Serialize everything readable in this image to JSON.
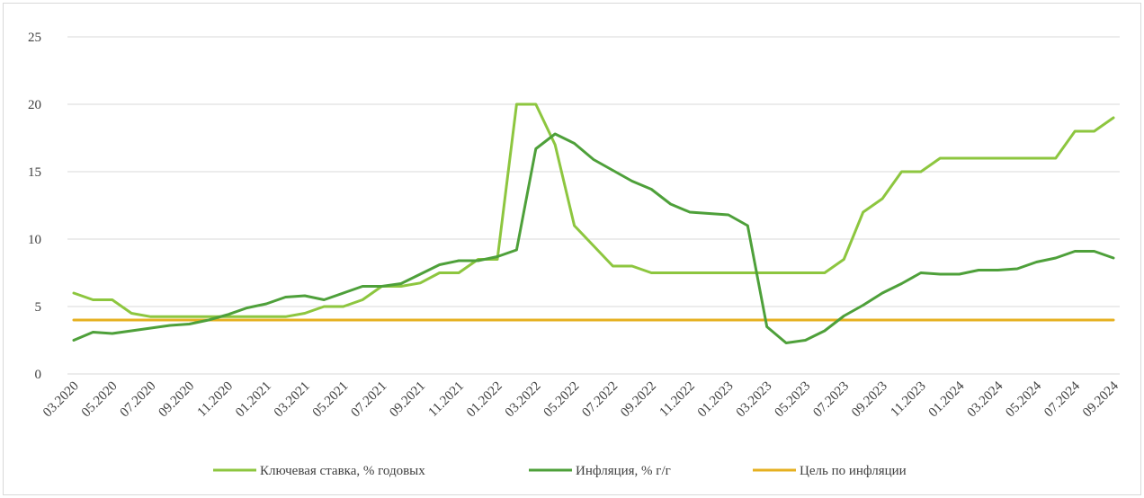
{
  "chart_data": {
    "type": "line",
    "title": "",
    "xlabel": "",
    "ylabel": "",
    "ylim": [
      0,
      25
    ],
    "y_ticks": [
      0,
      5,
      10,
      15,
      20,
      25
    ],
    "grid": "horizontal",
    "legend_position": "bottom",
    "x": [
      "03.2020",
      "04.2020",
      "05.2020",
      "06.2020",
      "07.2020",
      "08.2020",
      "09.2020",
      "10.2020",
      "11.2020",
      "12.2020",
      "01.2021",
      "02.2021",
      "03.2021",
      "04.2021",
      "05.2021",
      "06.2021",
      "07.2021",
      "08.2021",
      "09.2021",
      "10.2021",
      "11.2021",
      "12.2021",
      "01.2022",
      "02.2022",
      "03.2022",
      "04.2022",
      "05.2022",
      "06.2022",
      "07.2022",
      "08.2022",
      "09.2022",
      "10.2022",
      "11.2022",
      "12.2022",
      "01.2023",
      "02.2023",
      "03.2023",
      "04.2023",
      "05.2023",
      "06.2023",
      "07.2023",
      "08.2023",
      "09.2023",
      "10.2023",
      "11.2023",
      "12.2023",
      "01.2024",
      "02.2024",
      "03.2024",
      "04.2024",
      "05.2024",
      "06.2024",
      "07.2024",
      "08.2024",
      "09.2024"
    ],
    "x_tick_labels": [
      "03.2020",
      "05.2020",
      "07.2020",
      "09.2020",
      "11.2020",
      "01.2021",
      "03.2021",
      "05.2021",
      "07.2021",
      "09.2021",
      "11.2021",
      "01.2022",
      "03.2022",
      "05.2022",
      "07.2022",
      "09.2022",
      "11.2022",
      "01.2023",
      "03.2023",
      "05.2023",
      "07.2023",
      "09.2023",
      "11.2023",
      "01.2024",
      "03.2024",
      "05.2024",
      "07.2024",
      "09.2024"
    ],
    "series": [
      {
        "name": "Ключевая ставка, % годовых",
        "color": "#8dc63f",
        "values": [
          6.0,
          5.5,
          5.5,
          4.5,
          4.25,
          4.25,
          4.25,
          4.25,
          4.25,
          4.25,
          4.25,
          4.25,
          4.5,
          5.0,
          5.0,
          5.5,
          6.5,
          6.5,
          6.75,
          7.5,
          7.5,
          8.5,
          8.5,
          20.0,
          20.0,
          17.0,
          11.0,
          9.5,
          8.0,
          8.0,
          7.5,
          7.5,
          7.5,
          7.5,
          7.5,
          7.5,
          7.5,
          7.5,
          7.5,
          7.5,
          8.5,
          12.0,
          13.0,
          15.0,
          15.0,
          16.0,
          16.0,
          16.0,
          16.0,
          16.0,
          16.0,
          16.0,
          18.0,
          18.0,
          19.0
        ]
      },
      {
        "name": "Инфляция, % г/г",
        "color": "#4ea03a",
        "values": [
          2.5,
          3.1,
          3.0,
          3.2,
          3.4,
          3.6,
          3.7,
          4.0,
          4.4,
          4.9,
          5.2,
          5.7,
          5.8,
          5.5,
          6.0,
          6.5,
          6.5,
          6.7,
          7.4,
          8.1,
          8.4,
          8.4,
          8.7,
          9.2,
          16.7,
          17.8,
          17.1,
          15.9,
          15.1,
          14.3,
          13.7,
          12.6,
          12.0,
          11.9,
          11.8,
          11.0,
          3.5,
          2.3,
          2.5,
          3.2,
          4.3,
          5.1,
          6.0,
          6.7,
          7.5,
          7.4,
          7.4,
          7.7,
          7.7,
          7.8,
          8.3,
          8.6,
          9.1,
          9.1,
          8.6
        ]
      },
      {
        "name": "Цель по инфляции",
        "color": "#e6b020",
        "values": [
          4,
          4,
          4,
          4,
          4,
          4,
          4,
          4,
          4,
          4,
          4,
          4,
          4,
          4,
          4,
          4,
          4,
          4,
          4,
          4,
          4,
          4,
          4,
          4,
          4,
          4,
          4,
          4,
          4,
          4,
          4,
          4,
          4,
          4,
          4,
          4,
          4,
          4,
          4,
          4,
          4,
          4,
          4,
          4,
          4,
          4,
          4,
          4,
          4,
          4,
          4,
          4,
          4,
          4,
          4
        ]
      }
    ]
  }
}
